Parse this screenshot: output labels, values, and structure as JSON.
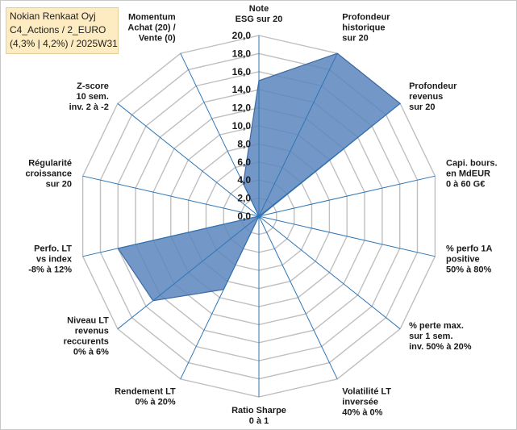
{
  "header": {
    "line1": "Nokian Renkaat Oyj",
    "line2": "C4_Actions / 2_EURO",
    "line3": "(4,3% | 4,2%) / 2025W31"
  },
  "colors": {
    "fill": "#5b86bd",
    "stroke": "#3d6aa3",
    "grid": "#bfbfbf",
    "spoke": "#2e75b6"
  },
  "chart_data": {
    "type": "radar",
    "title": "",
    "rmin": 0,
    "rmax": 20,
    "ticks": [
      "0,0",
      "2,0",
      "4,0",
      "6,0",
      "8,0",
      "10,0",
      "12,0",
      "14,0",
      "16,0",
      "18,0",
      "20,0"
    ],
    "grid": true,
    "legend": "none",
    "axes": [
      {
        "label": [
          "Note",
          "ESG sur 20"
        ],
        "value": 15.0
      },
      {
        "label": [
          "Profondeur",
          "historique",
          "sur 20"
        ],
        "value": 20.0
      },
      {
        "label": [
          "Profondeur",
          "revenus",
          "sur 20"
        ],
        "value": 20.0
      },
      {
        "label": [
          "Capi. bours.",
          "en MdEUR",
          "0 à 60 G€"
        ],
        "value": 0.2
      },
      {
        "label": [
          "% perfo 1A",
          "positive",
          "50% à 80%"
        ],
        "value": 0.0
      },
      {
        "label": [
          "% perte max.",
          "sur 1 sem.",
          "inv. 50% à 20%"
        ],
        "value": 0.0
      },
      {
        "label": [
          "Volatilité LT",
          "inversée",
          "40% à 0%"
        ],
        "value": 0.0
      },
      {
        "label": [
          "Ratio Sharpe",
          "0 à 1"
        ],
        "value": 0.0
      },
      {
        "label": [
          "Rendement LT",
          "0% à 20%"
        ],
        "value": 9.0
      },
      {
        "label": [
          "Niveau LT",
          "revenus",
          "reccurents",
          "0% à 6%"
        ],
        "value": 15.0
      },
      {
        "label": [
          "Perfo. LT",
          "vs index",
          "-8% à 12%"
        ],
        "value": 16.0
      },
      {
        "label": [
          "Régularité",
          "croissance",
          "sur 20"
        ],
        "value": 0.0
      },
      {
        "label": [
          "Z-score",
          "10 sem.",
          "inv. 2 à -2"
        ],
        "value": 0.0
      },
      {
        "label": [
          "Momentum",
          "Achat (20) /",
          "Vente (0)"
        ],
        "value": 4.0
      }
    ]
  }
}
